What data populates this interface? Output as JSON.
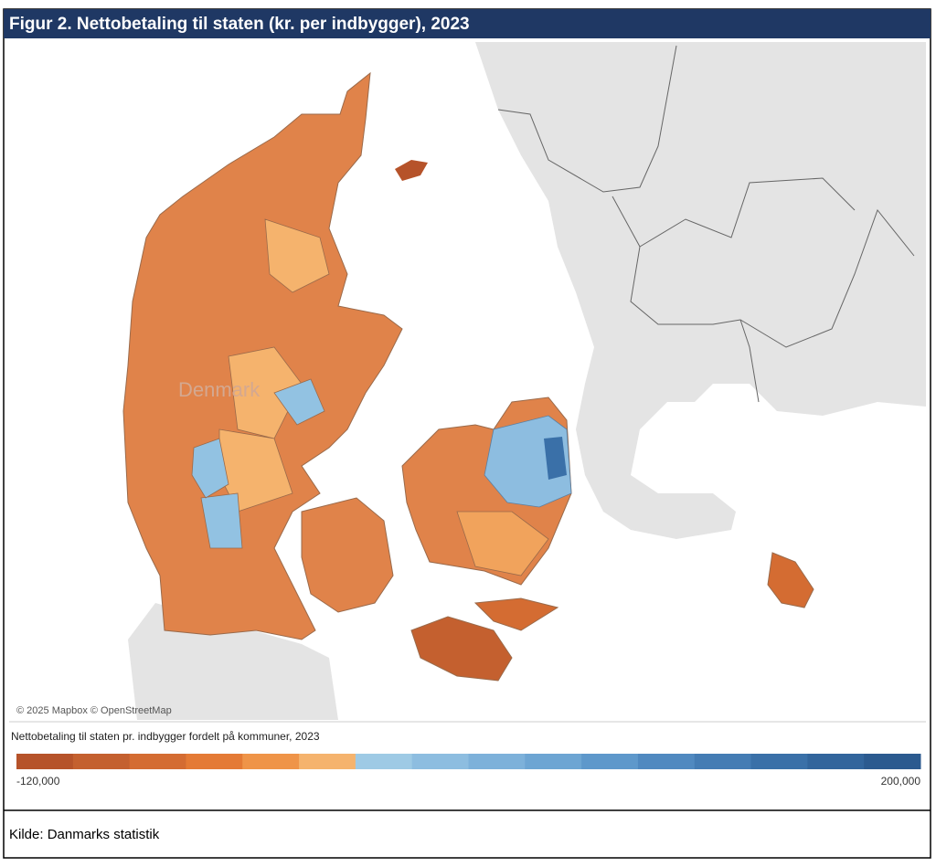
{
  "title": "Figur 2. Nettobetaling til staten (kr. per indbygger), 2023",
  "map": {
    "label": "Denmark",
    "attribution": "© 2025 Mapbox © OpenStreetMap"
  },
  "legend": {
    "title": "Nettobetaling til staten pr. indbygger fordelt på kommuner, 2023",
    "min": {
      "value": -120000,
      "label": "-120,000"
    },
    "max": {
      "value": 200000,
      "label": "200,000"
    },
    "colors": [
      "#b6532a",
      "#c4602f",
      "#d46c32",
      "#e47a35",
      "#ef9448",
      "#f5b36d",
      "#9ecae5",
      "#8dbde0",
      "#7db1da",
      "#6da5d3",
      "#5e98cb",
      "#5089c0",
      "#447cb4",
      "#3a70a8",
      "#32659c",
      "#2b5a8f"
    ]
  },
  "source": "Kilde: Danmarks statistik"
}
